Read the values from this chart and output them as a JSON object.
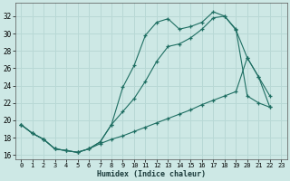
{
  "xlabel": "Humidex (Indice chaleur)",
  "xlim": [
    -0.5,
    23.5
  ],
  "ylim": [
    15.5,
    33.5
  ],
  "yticks": [
    16,
    18,
    20,
    22,
    24,
    26,
    28,
    30,
    32
  ],
  "xticks": [
    0,
    1,
    2,
    3,
    4,
    5,
    6,
    7,
    8,
    9,
    10,
    11,
    12,
    13,
    14,
    15,
    16,
    17,
    18,
    19,
    20,
    21,
    22,
    23
  ],
  "bg_color": "#cde8e5",
  "line_color": "#1e6e62",
  "grid_color": "#b8d8d5",
  "line1_x": [
    0,
    1,
    2,
    3,
    4,
    5,
    6,
    7,
    8,
    9,
    10,
    11,
    12,
    13,
    14,
    15,
    16,
    17,
    18,
    19,
    20,
    21,
    22
  ],
  "line1_y": [
    19.5,
    18.5,
    17.8,
    16.7,
    16.5,
    16.3,
    16.7,
    17.5,
    19.5,
    23.8,
    26.3,
    29.8,
    31.3,
    31.7,
    30.5,
    30.8,
    31.3,
    32.5,
    32.0,
    30.5,
    22.8,
    22.0,
    21.5
  ],
  "line2_x": [
    0,
    1,
    2,
    3,
    4,
    5,
    6,
    7,
    8,
    9,
    10,
    11,
    12,
    13,
    14,
    15,
    16,
    17,
    18,
    19,
    20,
    21,
    22
  ],
  "line2_y": [
    19.5,
    18.5,
    17.8,
    16.7,
    16.5,
    16.3,
    16.7,
    17.5,
    19.5,
    21.0,
    22.5,
    24.5,
    26.8,
    28.5,
    28.8,
    29.5,
    30.5,
    31.8,
    32.0,
    30.4,
    27.2,
    25.0,
    22.8
  ],
  "line3_x": [
    0,
    1,
    2,
    3,
    4,
    5,
    6,
    7,
    8,
    9,
    10,
    11,
    12,
    13,
    14,
    15,
    16,
    17,
    18,
    19,
    20,
    21,
    22
  ],
  "line3_y": [
    19.5,
    18.5,
    17.8,
    16.7,
    16.5,
    16.3,
    16.7,
    17.3,
    17.8,
    18.2,
    18.7,
    19.2,
    19.7,
    20.2,
    20.7,
    21.2,
    21.8,
    22.3,
    22.8,
    23.3,
    27.2,
    25.0,
    21.5
  ]
}
